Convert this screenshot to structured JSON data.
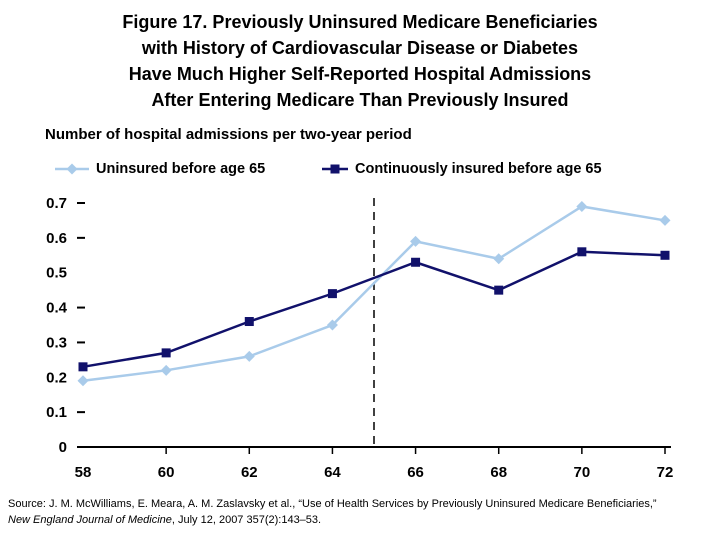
{
  "title": {
    "lines": [
      "Figure 17. Previously Uninsured Medicare Beneficiaries",
      "with History of Cardiovascular Disease or Diabetes",
      "Have Much Higher Self-Reported Hospital Admissions",
      "After Entering Medicare Than Previously Insured"
    ]
  },
  "subtitle": "Number of hospital admissions per two-year period",
  "legend": {
    "uninsured": "Uninsured before age 65",
    "insured": "Continuously insured before age 65"
  },
  "colors": {
    "uninsured": "#a9cbea",
    "insured": "#11116b",
    "axis": "#000000"
  },
  "chart_data": {
    "type": "line",
    "title": "Figure 17. Previously Uninsured Medicare Beneficiaries with History of Cardiovascular Disease or Diabetes Have Much Higher Self-Reported Hospital Admissions After Entering Medicare Than Previously Insured",
    "subtitle": "Number of hospital admissions per two-year period",
    "x": [
      58,
      60,
      62,
      64,
      66,
      68,
      70,
      72
    ],
    "series": [
      {
        "name": "Uninsured before age 65",
        "marker": "diamond",
        "color": "#a9cbea",
        "values": [
          0.19,
          0.22,
          0.26,
          0.35,
          0.59,
          0.54,
          0.69,
          0.65
        ]
      },
      {
        "name": "Continuously insured before age 65",
        "marker": "square",
        "color": "#11116b",
        "values": [
          0.23,
          0.27,
          0.36,
          0.44,
          0.53,
          0.45,
          0.56,
          0.55
        ]
      }
    ],
    "xlabel": "",
    "ylabel": "Number of hospital admissions per two-year period",
    "xlim": [
      58,
      72
    ],
    "ylim": [
      0,
      0.7
    ],
    "xticks": [
      58,
      60,
      62,
      64,
      66,
      68,
      70,
      72
    ],
    "ytick_labels": [
      "0",
      "0.1",
      "0.2",
      "0.3",
      "0.4",
      "0.5",
      "0.6",
      "0.7"
    ],
    "yticks": [
      0,
      0.1,
      0.2,
      0.3,
      0.4,
      0.5,
      0.6,
      0.7
    ],
    "reference_line_x": 65,
    "grid": false,
    "legend_position": "top"
  },
  "source": {
    "prefix": "Source: J. M. McWilliams, E. Meara, A. M. Zaslavsky et al., “Use of Health Services by Previously Uninsured Medicare Beneficiaries,” ",
    "italic": "New England Journal of Medicine",
    "suffix": ", July 12, 2007 357(2):143–53."
  }
}
